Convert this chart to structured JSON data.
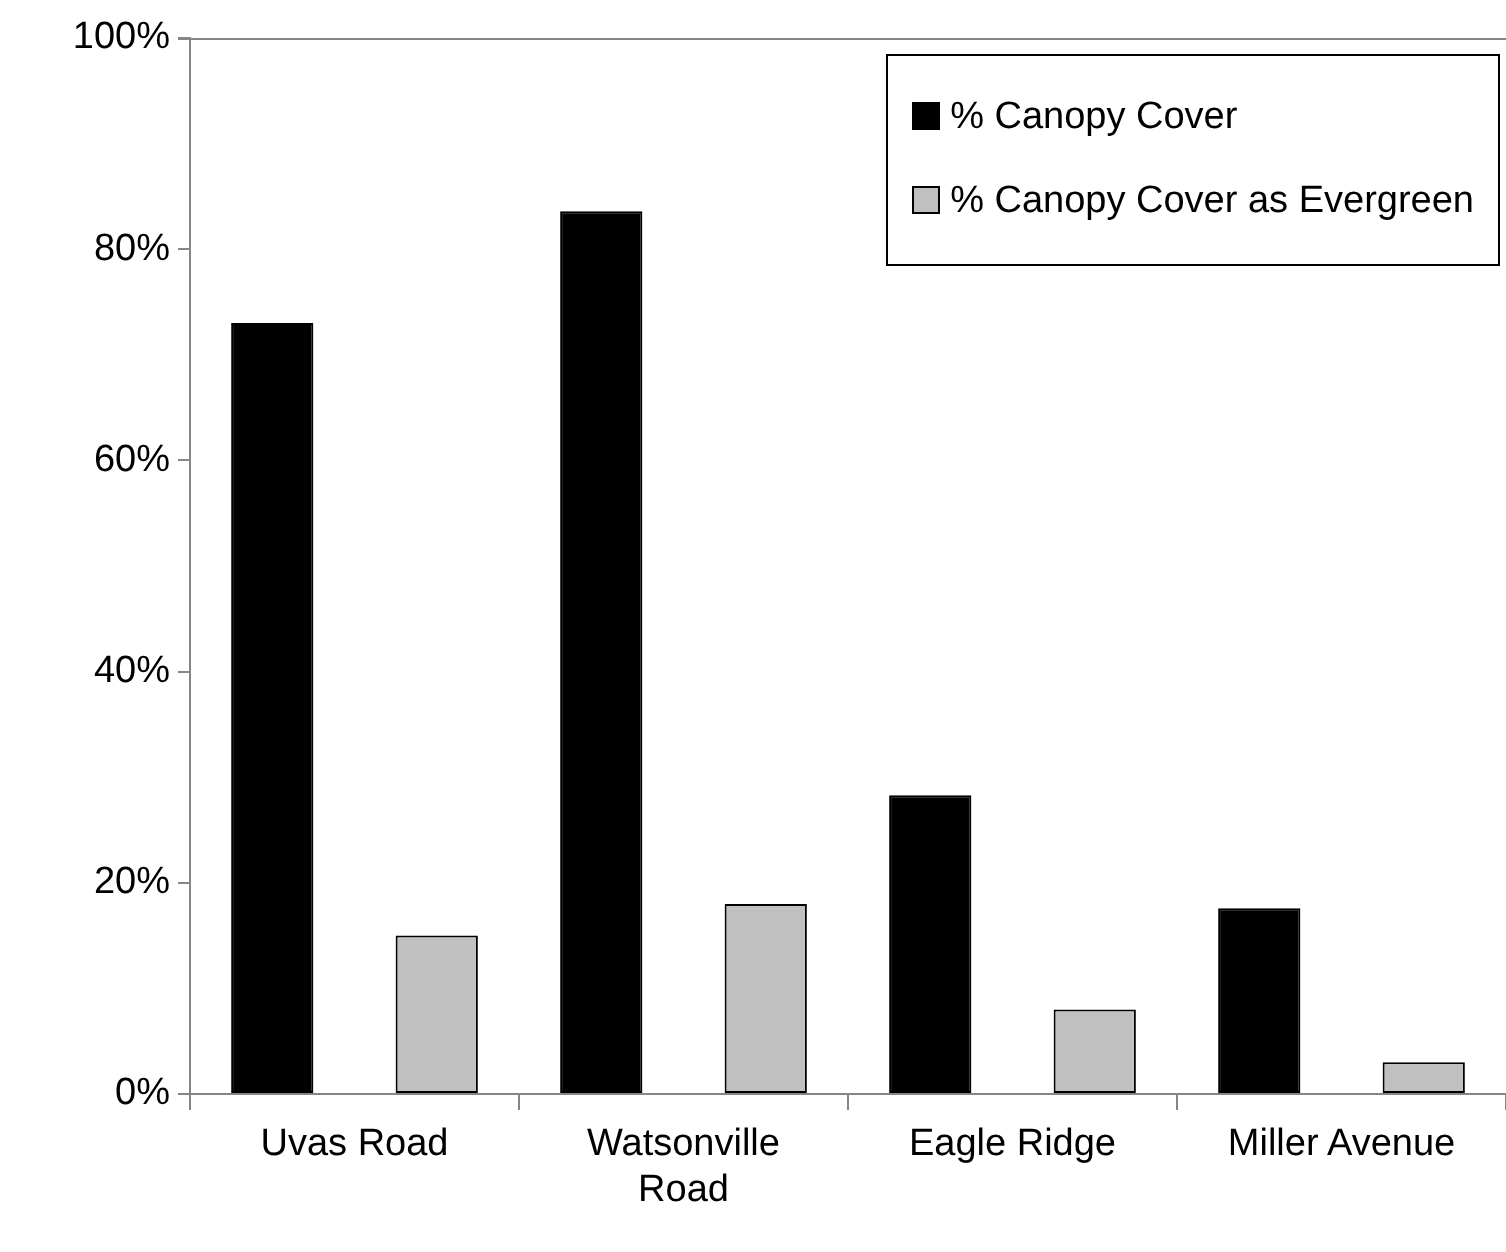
{
  "chart_data": {
    "type": "bar",
    "categories": [
      "Uvas Road",
      "Watsonville Road",
      "Eagle Ridge",
      "Miller Avenue"
    ],
    "series": [
      {
        "name": "% Canopy Cover",
        "color": "#000000",
        "values": [
          73,
          83.6,
          28.3,
          17.6
        ]
      },
      {
        "name": "% Canopy Cover as Evergreen",
        "color": "#c0c0c0",
        "values": [
          15,
          18,
          8,
          3
        ]
      }
    ],
    "ylim": [
      0,
      100
    ],
    "yticks": [
      {
        "value": 0,
        "label": "0%"
      },
      {
        "value": 20,
        "label": "20%"
      },
      {
        "value": 40,
        "label": "40%"
      },
      {
        "value": 60,
        "label": "60%"
      },
      {
        "value": 80,
        "label": "80%"
      },
      {
        "value": 100,
        "label": "100%"
      }
    ],
    "grid": false,
    "legend": "top right"
  }
}
